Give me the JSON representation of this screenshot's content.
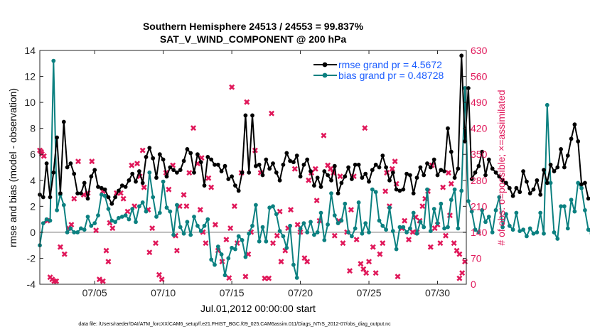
{
  "chart_data": {
    "type": "line",
    "title": "Southern Hemisphere 24513 / 24553 = 99.837%",
    "subtitle": "SAT_V_WIND_COMPONENT @ 200 hPa",
    "xlabel": "Jul.01,2012 00:00:00 start",
    "ylabel_left": "rmse and bias (model - observation)",
    "ylabel_right": "# of obs: o=possible; ×=assimilated",
    "footer": "data file: /Users/raeder/DAI/ATM_forcXX/CAM6_setup/f.e21.FHIST_BGC.f09_025.CAM6assim.011/Diags_NTrS_2012-07/obs_diag_output.nc",
    "xlim": [
      1.0,
      32.1
    ],
    "ylim_left": [
      -4,
      14
    ],
    "ylim_right": [
      0,
      630
    ],
    "x_ticks": [
      5,
      10,
      15,
      20,
      25,
      30
    ],
    "x_tick_labels": [
      "07/05",
      "07/10",
      "07/15",
      "07/20",
      "07/25",
      "07/30"
    ],
    "y_left_ticks": [
      -4,
      -2,
      0,
      2,
      4,
      6,
      8,
      10,
      12,
      14
    ],
    "y_left_tick_labels": [
      "-4",
      "-2",
      "0",
      "2",
      "4",
      "6",
      "8",
      "10",
      "12",
      "14"
    ],
    "y_right_ticks": [
      0,
      70,
      140,
      210,
      280,
      350,
      420,
      490,
      560,
      630
    ],
    "y_right_tick_labels": [
      "0",
      "70",
      "140",
      "210",
      "280",
      "350",
      "420",
      "490",
      "560",
      "630"
    ],
    "x_start": 1.0,
    "x_step": 0.25,
    "series": [
      {
        "name": "rmse grand pr = 4.5672",
        "color": "#000000",
        "axis": "left",
        "values": [
          2.9,
          2.7,
          5.3,
          2.7,
          4.6,
          7.3,
          3.0,
          8.5,
          5.0,
          5.3,
          4.5,
          3.0,
          3.0,
          3.8,
          2.6,
          4.3,
          4.8,
          3.5,
          3.4,
          3.3,
          2.7,
          2.2,
          2.7,
          3.2,
          3.6,
          3.5,
          4.0,
          4.5,
          3.9,
          4.7,
          3.8,
          5.8,
          6.5,
          5.7,
          4.2,
          6.0,
          5.6,
          4.3,
          5.0,
          4.8,
          4.6,
          4.8,
          5.5,
          6.4,
          6.1,
          4.6,
          6.0,
          5.4,
          3.6,
          5.8,
          5.6,
          5.2,
          5.2,
          4.7,
          5.1,
          4.1,
          4.3,
          3.6,
          3.2,
          4.6,
          9.0,
          4.6,
          9.0,
          5.1,
          5.2,
          4.4,
          5.6,
          4.9,
          5.3,
          4.6,
          4.0,
          5.2,
          6.1,
          5.5,
          5.4,
          5.9,
          4.3,
          5.2,
          5.6,
          4.7,
          3.6,
          4.2,
          3.5,
          4.7,
          4.4,
          4.0,
          5.1,
          3.0,
          3.8,
          4.3,
          5.0,
          4.1,
          5.2,
          5.2,
          4.2,
          4.5,
          3.9,
          4.8,
          5.2,
          5.0,
          5.9,
          5.0,
          4.0,
          4.6,
          3.3,
          3.2,
          3.3,
          4.5,
          4.4,
          3.0,
          4.2,
          5.0,
          4.4,
          5.3,
          5.0,
          5.6,
          4.4,
          4.8,
          4.7,
          8.0,
          6.2,
          4.2,
          4.9,
          13.6,
          7.0,
          11.1,
          4.1,
          4.6,
          5.1,
          6.2,
          4.4,
          5.6,
          4.9,
          4.6,
          4.3,
          4.0,
          3.8,
          3.4,
          2.8,
          3.4,
          3.1,
          4.7,
          3.9,
          3.0,
          3.3,
          4.0,
          2.9,
          4.8,
          3.8,
          5.2,
          4.7,
          5.0,
          6.4,
          5.0,
          5.9,
          7.2,
          8.3,
          7.0,
          3.7,
          3.8,
          2.6
        ]
      },
      {
        "name": "bias grand pr = 0.48728",
        "color": "#0b8080",
        "axis": "left",
        "values": [
          -1.0,
          0.7,
          1.0,
          0.9,
          13.2,
          1.7,
          2.9,
          2.1,
          0.0,
          0.3,
          0.0,
          0.0,
          0.3,
          0.2,
          1.2,
          0.5,
          0.7,
          1.3,
          2.9,
          2.8,
          1.8,
          0.9,
          0.8,
          1.1,
          1.2,
          1.3,
          1.0,
          1.8,
          0.8,
          2.0,
          2.3,
          1.6,
          4.6,
          2.7,
          1.2,
          1.5,
          3.9,
          1.9,
          1.6,
          -0.2,
          2.1,
          0.4,
          -0.1,
          0.8,
          -0.2,
          1.2,
          0.5,
          0.1,
          0.5,
          1.0,
          -2.1,
          -2.5,
          -1.1,
          -1.7,
          -3.3,
          -2.0,
          -1.2,
          -1.3,
          -0.3,
          -0.6,
          -1.9,
          -0.1,
          0.5,
          2.1,
          -0.7,
          0.4,
          -0.7,
          1.9,
          2.0,
          1.4,
          0.1,
          -0.3,
          -1.2,
          0.5,
          -2.5,
          -3.5,
          0.3,
          0.7,
          0.0,
          0.8,
          -0.2,
          0.0,
          1.5,
          -0.6,
          0.6,
          3.0,
          1.3,
          0.7,
          0.9,
          2.2,
          0.0,
          -0.3,
          0.3,
          2.3,
          -0.1,
          0.7,
          0.0,
          3.3,
          3.1,
          0.9,
          0.5,
          0.2,
          1.9,
          0.1,
          -1.3,
          0.4,
          0.4,
          0.0,
          0.3,
          1.5,
          -0.1,
          0.8,
          0.4,
          3.3,
          0.1,
          1.8,
          0.7,
          2.2,
          0.3,
          0.4,
          2.5,
          3.3,
          0.3,
          3.2,
          11.1,
          2.4,
          1.6,
          0.2,
          0.0,
          1.7,
          0.8,
          1.2,
          0.0,
          1.7,
          2.7,
          0.4,
          1.4,
          0.5,
          0.2,
          1.5,
          0.1,
          0.2,
          -0.3,
          0.3,
          -0.1,
          0.0,
          1.5,
          -0.1,
          9.8,
          3.8,
          0.0,
          -0.5,
          2.0,
          2.0,
          0.3,
          2.5,
          1.6,
          3.8,
          3.4,
          1.7,
          0.2,
          -0.1
        ]
      }
    ],
    "marker_series": {
      "name": "# of obs",
      "color": "#e0185a",
      "axis": "right",
      "points": [
        [
          1.0,
          360
        ],
        [
          1.1,
          356
        ],
        [
          1.3,
          345
        ],
        [
          1.55,
          170
        ],
        [
          1.75,
          18
        ],
        [
          1.9,
          12
        ],
        [
          2.05,
          8
        ],
        [
          2.2,
          8
        ],
        [
          2.5,
          100
        ],
        [
          3.1,
          150
        ],
        [
          3.5,
          230
        ],
        [
          3.8,
          330
        ],
        [
          4.2,
          240
        ],
        [
          4.5,
          245
        ],
        [
          4.8,
          330
        ],
        [
          5.1,
          145
        ],
        [
          5.35,
          12
        ],
        [
          5.6,
          8
        ],
        [
          5.85,
          90
        ],
        [
          6.1,
          165
        ],
        [
          6.3,
          150
        ],
        [
          6.6,
          245
        ],
        [
          6.9,
          245
        ],
        [
          7.1,
          230
        ],
        [
          7.4,
          195
        ],
        [
          7.7,
          320
        ],
        [
          7.9,
          210
        ],
        [
          8.1,
          325
        ],
        [
          8.3,
          290
        ],
        [
          8.6,
          260
        ],
        [
          8.9,
          200
        ],
        [
          9.2,
          150
        ],
        [
          9.45,
          110
        ],
        [
          9.7,
          25
        ],
        [
          9.9,
          12
        ],
        [
          10.2,
          300
        ],
        [
          10.4,
          255
        ],
        [
          10.7,
          320
        ],
        [
          10.9,
          130
        ],
        [
          11.2,
          210
        ],
        [
          11.5,
          240
        ],
        [
          11.7,
          210
        ],
        [
          11.9,
          300
        ],
        [
          12.2,
          420
        ],
        [
          12.5,
          325
        ],
        [
          12.7,
          200
        ],
        [
          12.9,
          140
        ],
        [
          13.1,
          110
        ],
        [
          13.3,
          285
        ],
        [
          13.5,
          260
        ],
        [
          13.8,
          160
        ],
        [
          14.0,
          90
        ],
        [
          14.3,
          60
        ],
        [
          14.6,
          120
        ],
        [
          14.9,
          150
        ],
        [
          15.2,
          210
        ],
        [
          15.4,
          110
        ],
        [
          15.7,
          300
        ],
        [
          16.0,
          20
        ],
        [
          16.2,
          80
        ],
        [
          16.4,
          140
        ],
        [
          16.7,
          360
        ],
        [
          17.1,
          300
        ],
        [
          17.4,
          15
        ],
        [
          17.7,
          15
        ],
        [
          18.0,
          110
        ],
        [
          18.3,
          130
        ],
        [
          18.6,
          60
        ],
        [
          18.9,
          90
        ],
        [
          19.1,
          150
        ],
        [
          19.3,
          200
        ],
        [
          19.6,
          310
        ],
        [
          19.8,
          160
        ],
        [
          20.0,
          140
        ],
        [
          20.3,
          70
        ],
        [
          20.5,
          60
        ],
        [
          20.8,
          300
        ],
        [
          21.1,
          310
        ],
        [
          21.4,
          170
        ],
        [
          21.7,
          400
        ],
        [
          22.0,
          320
        ],
        [
          22.2,
          310
        ],
        [
          22.5,
          130
        ],
        [
          22.8,
          170
        ],
        [
          23.1,
          110
        ],
        [
          23.4,
          140
        ],
        [
          23.7,
          200
        ],
        [
          23.9,
          290
        ],
        [
          24.1,
          120
        ],
        [
          24.4,
          55
        ],
        [
          24.6,
          40
        ],
        [
          24.8,
          30
        ],
        [
          25.0,
          60
        ],
        [
          25.3,
          100
        ],
        [
          25.5,
          30
        ],
        [
          25.8,
          80
        ],
        [
          26.0,
          110
        ],
        [
          26.3,
          300
        ],
        [
          26.5,
          210
        ],
        [
          26.7,
          310
        ],
        [
          26.9,
          330
        ],
        [
          27.1,
          20
        ],
        [
          27.4,
          150
        ],
        [
          27.6,
          170
        ],
        [
          27.9,
          120
        ],
        [
          28.2,
          140
        ],
        [
          28.5,
          140
        ],
        [
          28.7,
          170
        ],
        [
          28.9,
          210
        ],
        [
          29.1,
          230
        ],
        [
          29.3,
          250
        ],
        [
          29.5,
          100
        ],
        [
          29.8,
          150
        ],
        [
          30.0,
          160
        ],
        [
          30.2,
          110
        ],
        [
          30.4,
          260
        ],
        [
          30.6,
          130
        ],
        [
          30.8,
          300
        ],
        [
          31.0,
          270
        ],
        [
          31.2,
          110
        ],
        [
          31.4,
          90
        ],
        [
          31.6,
          80
        ],
        [
          31.8,
          30
        ],
        [
          32.0,
          60
        ],
        [
          1.15,
          350
        ],
        [
          3.3,
          160
        ],
        [
          6.0,
          60
        ],
        [
          9.0,
          85
        ],
        [
          14.8,
          16
        ],
        [
          16.1,
          490
        ],
        [
          17.9,
          460
        ],
        [
          21.2,
          225
        ],
        [
          22.4,
          300
        ],
        [
          23.6,
          35
        ],
        [
          26.2,
          250
        ],
        [
          28.4,
          180
        ],
        [
          30.9,
          185
        ],
        [
          2.8,
          80
        ],
        [
          5.6,
          250
        ],
        [
          8.5,
          360
        ],
        [
          11.0,
          90
        ],
        [
          12.8,
          340
        ],
        [
          15.0,
          530
        ],
        [
          18.5,
          195
        ],
        [
          20.6,
          280
        ],
        [
          22.9,
          290
        ],
        [
          24.7,
          420
        ],
        [
          27.0,
          270
        ],
        [
          29.6,
          320
        ],
        [
          31.6,
          15
        ]
      ]
    },
    "baseline": {
      "value": 0,
      "color": "#bbbbbb"
    }
  }
}
